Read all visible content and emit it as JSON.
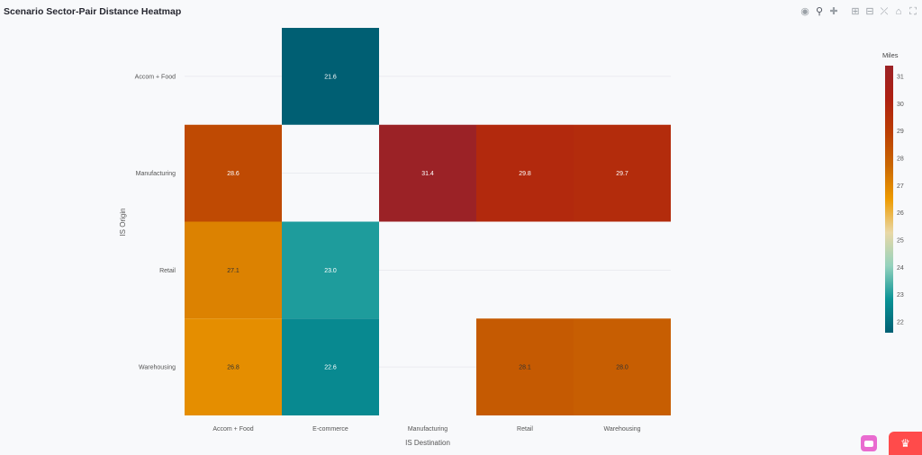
{
  "chart_data": {
    "type": "heatmap",
    "title": "Scenario Sector-Pair Distance Heatmap",
    "xlabel": "IS Destination",
    "ylabel": "IS Origin",
    "x": [
      "Accom + Food",
      "E-commerce",
      "Manufacturing",
      "Retail",
      "Warehousing"
    ],
    "y": [
      "Accom + Food",
      "Manufacturing",
      "Retail",
      "Warehousing"
    ],
    "z": [
      [
        null,
        21.6,
        null,
        null,
        null
      ],
      [
        28.6,
        null,
        31.4,
        29.8,
        29.7
      ],
      [
        27.1,
        23.0,
        null,
        null,
        null
      ],
      [
        26.8,
        22.6,
        null,
        28.1,
        28.0
      ]
    ],
    "colorbar": {
      "title": "Miles",
      "range": [
        21.6,
        31.4
      ],
      "ticks": [
        22,
        23,
        24,
        25,
        26,
        27,
        28,
        29,
        30,
        31
      ]
    },
    "colorscale": [
      "#005f73",
      "#0a9396",
      "#94d2bd",
      "#e9d8a6",
      "#ee9b00",
      "#ca6702",
      "#bb3e03",
      "#ae2012",
      "#9b2226"
    ]
  },
  "modebar": {
    "icons": [
      "camera-icon",
      "zoom-icon",
      "pan-icon",
      "zoom-in-icon",
      "zoom-out-icon",
      "autoscale-icon",
      "home-icon",
      "fullscreen-icon"
    ]
  }
}
